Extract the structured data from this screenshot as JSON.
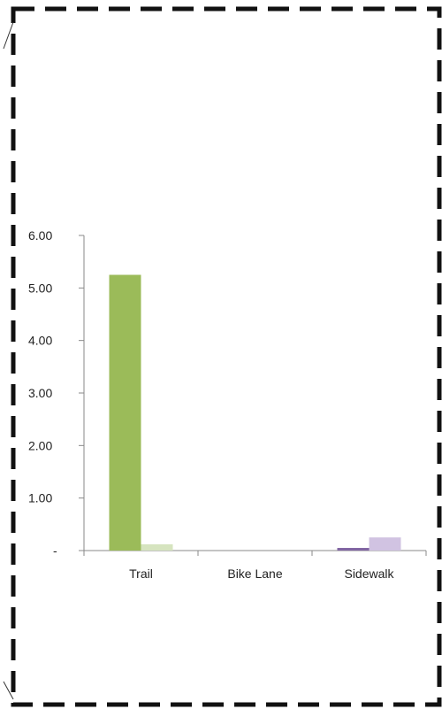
{
  "chart_data": {
    "type": "bar",
    "categories": [
      "Trail",
      "Bike Lane",
      "Sidewalk"
    ],
    "series": [
      {
        "values": [
          5.25,
          0,
          0.05
        ]
      },
      {
        "values": [
          0.12,
          0,
          0.25
        ]
      }
    ],
    "colors": [
      [
        "#9bbb59",
        "#d6e4bf"
      ],
      [
        "#cfd9b8",
        "#e1ebd0"
      ],
      [
        "#8064a2",
        "#d1c3e2"
      ]
    ],
    "y_ticks": [
      "-",
      "1.00",
      "2.00",
      "3.00",
      "4.00",
      "5.00",
      "6.00"
    ],
    "ylim": [
      0,
      6
    ],
    "grid": false,
    "legend": "none",
    "title": "",
    "xlabel": "",
    "ylabel": ""
  }
}
